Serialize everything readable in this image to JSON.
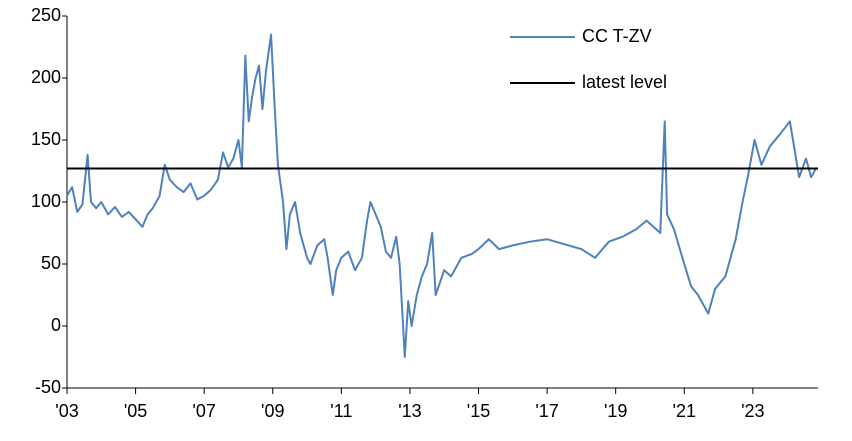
{
  "chart_data": {
    "type": "line",
    "series": [
      {
        "name": "CC T-ZV",
        "color": "#4f81bd",
        "x": [
          2003.0,
          2003.15,
          2003.3,
          2003.45,
          2003.6,
          2003.7,
          2003.85,
          2004.0,
          2004.2,
          2004.4,
          2004.6,
          2004.8,
          2005.0,
          2005.2,
          2005.35,
          2005.5,
          2005.7,
          2005.85,
          2006.0,
          2006.2,
          2006.4,
          2006.6,
          2006.8,
          2007.0,
          2007.2,
          2007.4,
          2007.55,
          2007.7,
          2007.85,
          2008.0,
          2008.1,
          2008.2,
          2008.3,
          2008.4,
          2008.5,
          2008.6,
          2008.7,
          2008.8,
          2008.95,
          2009.05,
          2009.15,
          2009.3,
          2009.4,
          2009.5,
          2009.65,
          2009.8,
          2010.0,
          2010.1,
          2010.3,
          2010.5,
          2010.6,
          2010.75,
          2010.85,
          2011.0,
          2011.2,
          2011.4,
          2011.6,
          2011.75,
          2011.85,
          2012.0,
          2012.15,
          2012.3,
          2012.45,
          2012.6,
          2012.7,
          2012.85,
          2012.95,
          2013.05,
          2013.2,
          2013.35,
          2013.5,
          2013.65,
          2013.75,
          2014.0,
          2014.2,
          2014.5,
          2014.8,
          2015.0,
          2015.3,
          2015.6,
          2016.0,
          2016.5,
          2017.0,
          2017.5,
          2018.0,
          2018.4,
          2018.8,
          2019.2,
          2019.6,
          2019.9,
          2020.1,
          2020.3,
          2020.43,
          2020.5,
          2020.7,
          2021.0,
          2021.2,
          2021.4,
          2021.6,
          2021.7,
          2021.9,
          2022.2,
          2022.5,
          2022.7,
          2022.85,
          2023.05,
          2023.25,
          2023.5,
          2023.8,
          2024.08,
          2024.2,
          2024.35,
          2024.55,
          2024.7,
          2024.84
        ],
        "values": [
          105,
          112,
          92,
          98,
          138,
          100,
          95,
          100,
          90,
          96,
          88,
          92,
          86,
          80,
          90,
          95,
          105,
          130,
          118,
          112,
          108,
          115,
          102,
          105,
          110,
          118,
          140,
          128,
          135,
          150,
          128,
          218,
          165,
          185,
          200,
          210,
          175,
          205,
          235,
          180,
          130,
          100,
          62,
          90,
          100,
          75,
          55,
          50,
          65,
          70,
          55,
          25,
          45,
          55,
          60,
          45,
          55,
          85,
          100,
          90,
          80,
          60,
          55,
          72,
          50,
          -25,
          20,
          0,
          25,
          40,
          50,
          75,
          25,
          45,
          40,
          55,
          58,
          62,
          70,
          62,
          65,
          68,
          70,
          66,
          62,
          55,
          68,
          72,
          78,
          85,
          80,
          75,
          165,
          90,
          78,
          50,
          32,
          25,
          15,
          10,
          30,
          40,
          70,
          100,
          120,
          150,
          130,
          145,
          155,
          165,
          145,
          120,
          135,
          120,
          127
        ]
      }
    ],
    "reference_line": {
      "name": "latest level",
      "value": 127,
      "color": "#000000"
    },
    "xlim": [
      2003,
      2024.9
    ],
    "xticks": [
      {
        "value": 2003,
        "label": "'03"
      },
      {
        "value": 2005,
        "label": "'05"
      },
      {
        "value": 2007,
        "label": "'07"
      },
      {
        "value": 2009,
        "label": "'09"
      },
      {
        "value": 2011,
        "label": "'11"
      },
      {
        "value": 2013,
        "label": "'13"
      },
      {
        "value": 2015,
        "label": "'15"
      },
      {
        "value": 2017,
        "label": "'17"
      },
      {
        "value": 2019,
        "label": "'19"
      },
      {
        "value": 2021,
        "label": "'21"
      },
      {
        "value": 2023,
        "label": "'23"
      }
    ],
    "ylim": [
      -50,
      250
    ],
    "yticks": [
      -50,
      0,
      50,
      100,
      150,
      200,
      250
    ],
    "grid": false
  }
}
